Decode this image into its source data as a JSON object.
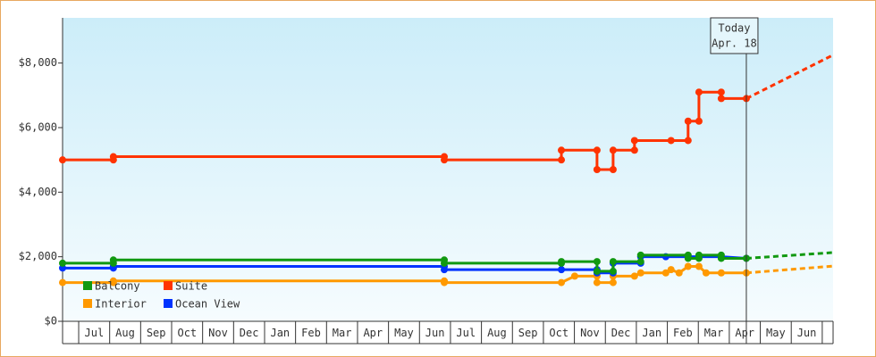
{
  "chart_data": {
    "type": "line",
    "xlim": [
      -0.52,
      24.35
    ],
    "ylim": [
      0,
      9400
    ],
    "yticks": [
      {
        "value": 0,
        "label": "$0"
      },
      {
        "value": 2000,
        "label": "$2,000"
      },
      {
        "value": 4000,
        "label": "$4,000"
      },
      {
        "value": 6000,
        "label": "$6,000"
      },
      {
        "value": 8000,
        "label": "$8,000"
      }
    ],
    "xticks": [
      {
        "value": 0.5,
        "label": "Jul"
      },
      {
        "value": 1.5,
        "label": "Aug"
      },
      {
        "value": 2.5,
        "label": "Sep"
      },
      {
        "value": 3.5,
        "label": "Oct"
      },
      {
        "value": 4.5,
        "label": "Nov"
      },
      {
        "value": 5.5,
        "label": "Dec"
      },
      {
        "value": 6.5,
        "label": "Jan"
      },
      {
        "value": 7.5,
        "label": "Feb"
      },
      {
        "value": 8.5,
        "label": "Mar"
      },
      {
        "value": 9.5,
        "label": "Apr"
      },
      {
        "value": 10.5,
        "label": "May"
      },
      {
        "value": 11.5,
        "label": "Jun"
      },
      {
        "value": 12.5,
        "label": "Jul"
      },
      {
        "value": 13.5,
        "label": "Aug"
      },
      {
        "value": 14.5,
        "label": "Sep"
      },
      {
        "value": 15.5,
        "label": "Oct"
      },
      {
        "value": 16.5,
        "label": "Nov"
      },
      {
        "value": 17.5,
        "label": "Dec"
      },
      {
        "value": 18.5,
        "label": "Jan"
      },
      {
        "value": 19.5,
        "label": "Feb"
      },
      {
        "value": 20.5,
        "label": "Mar"
      },
      {
        "value": 21.5,
        "label": "Apr"
      },
      {
        "value": 22.5,
        "label": "May"
      },
      {
        "value": 23.5,
        "label": "Jun"
      }
    ],
    "today": {
      "x": 21.55,
      "label": "Today",
      "date": "Apr. 18"
    },
    "series": [
      {
        "name": "Balcony",
        "color": "#119911",
        "x": [
          -0.52,
          1.12,
          1.12,
          11.8,
          11.8,
          15.58,
          15.58,
          16.73,
          16.73,
          17.25,
          17.25,
          18.14,
          18.14,
          19.67,
          19.67,
          20.02,
          20.02,
          20.74,
          20.74,
          21.55
        ],
        "values": [
          1800,
          1800,
          1900,
          1900,
          1800,
          1800,
          1850,
          1850,
          1550,
          1550,
          1850,
          1850,
          2050,
          2050,
          1950,
          1950,
          2050,
          2050,
          1950,
          1950
        ],
        "forecast_x": [
          21.55,
          24.35
        ],
        "forecast_values": [
          1950,
          2130
        ]
      },
      {
        "name": "Suite",
        "color": "#ff3300",
        "x": [
          -0.52,
          1.12,
          1.12,
          11.8,
          11.8,
          15.58,
          15.58,
          16.73,
          16.73,
          17.25,
          17.25,
          17.94,
          17.94,
          19.12,
          19.67,
          19.67,
          20.02,
          20.02,
          20.74,
          20.74,
          21.55
        ],
        "values": [
          5000,
          5000,
          5100,
          5100,
          5000,
          5000,
          5300,
          5300,
          4700,
          4700,
          5300,
          5300,
          5600,
          5600,
          5600,
          6200,
          6200,
          7100,
          7100,
          6900,
          6900
        ],
        "forecast_x": [
          21.55,
          24.35
        ],
        "forecast_values": [
          6900,
          8250
        ]
      },
      {
        "name": "Interior",
        "color": "#ff9900",
        "x": [
          -0.52,
          1.12,
          1.12,
          11.8,
          11.8,
          15.58,
          16.01,
          16.73,
          16.73,
          17.25,
          17.25,
          17.94,
          18.14,
          18.95,
          19.12,
          19.38,
          19.67,
          20.02,
          20.25,
          20.74,
          21.55
        ],
        "values": [
          1200,
          1200,
          1250,
          1250,
          1200,
          1200,
          1400,
          1400,
          1200,
          1200,
          1400,
          1400,
          1500,
          1500,
          1600,
          1500,
          1700,
          1700,
          1500,
          1500,
          1500
        ],
        "forecast_x": [
          21.55,
          24.35
        ],
        "forecast_values": [
          1500,
          1710
        ]
      },
      {
        "name": "Ocean View",
        "color": "#0033ff",
        "x": [
          -0.52,
          1.12,
          1.12,
          11.8,
          11.8,
          15.58,
          16.73,
          16.73,
          17.25,
          17.25,
          18.14,
          18.14,
          18.95,
          19.67,
          20.74,
          21.55
        ],
        "values": [
          1650,
          1650,
          1700,
          1700,
          1600,
          1600,
          1600,
          1500,
          1500,
          1800,
          1800,
          2000,
          2000,
          2000,
          2000,
          1950
        ]
      }
    ]
  }
}
